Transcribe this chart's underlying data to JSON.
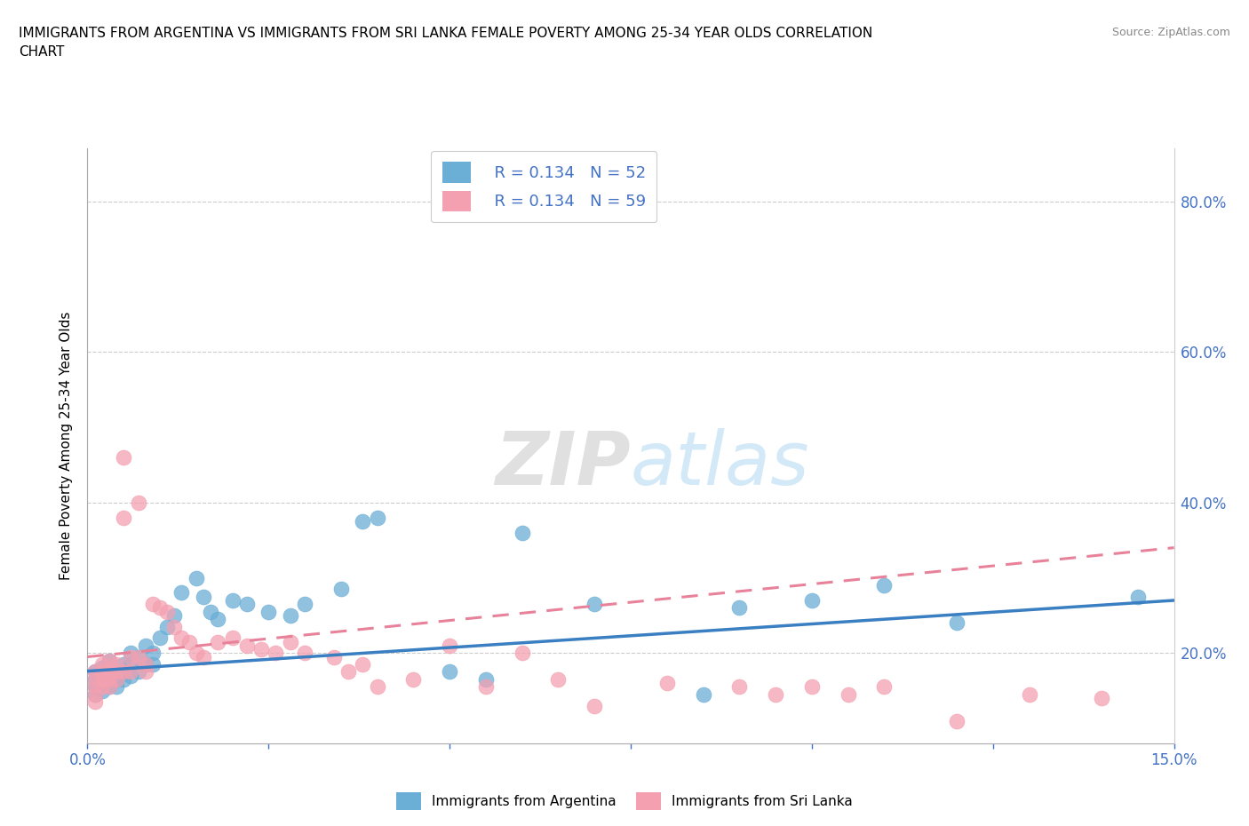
{
  "title_line1": "IMMIGRANTS FROM ARGENTINA VS IMMIGRANTS FROM SRI LANKA FEMALE POVERTY AMONG 25-34 YEAR OLDS CORRELATION",
  "title_line2": "CHART",
  "source": "Source: ZipAtlas.com",
  "ylabel": "Female Poverty Among 25-34 Year Olds",
  "y_ticks": [
    "20.0%",
    "40.0%",
    "60.0%",
    "80.0%"
  ],
  "y_tick_vals": [
    0.2,
    0.4,
    0.6,
    0.8
  ],
  "xmin": 0.0,
  "xmax": 0.15,
  "ymin": 0.08,
  "ymax": 0.87,
  "legend_r_argentina": "R = 0.134",
  "legend_n_argentina": "N = 52",
  "legend_r_srilanka": "R = 0.134",
  "legend_n_srilanka": "N = 59",
  "color_argentina": "#6baed6",
  "color_srilanka": "#f4a0b0",
  "watermark": "ZIPatlas",
  "argentina_x": [
    0.001,
    0.001,
    0.001,
    0.001,
    0.002,
    0.002,
    0.002,
    0.002,
    0.003,
    0.003,
    0.003,
    0.004,
    0.004,
    0.004,
    0.005,
    0.005,
    0.005,
    0.006,
    0.006,
    0.006,
    0.007,
    0.007,
    0.008,
    0.008,
    0.009,
    0.009,
    0.01,
    0.011,
    0.012,
    0.013,
    0.015,
    0.016,
    0.017,
    0.018,
    0.02,
    0.022,
    0.025,
    0.028,
    0.03,
    0.035,
    0.038,
    0.04,
    0.05,
    0.055,
    0.06,
    0.07,
    0.085,
    0.09,
    0.1,
    0.11,
    0.12,
    0.145
  ],
  "argentina_y": [
    0.175,
    0.165,
    0.155,
    0.145,
    0.18,
    0.17,
    0.16,
    0.15,
    0.19,
    0.175,
    0.155,
    0.17,
    0.165,
    0.155,
    0.185,
    0.175,
    0.165,
    0.2,
    0.185,
    0.17,
    0.195,
    0.175,
    0.21,
    0.185,
    0.2,
    0.185,
    0.22,
    0.235,
    0.25,
    0.28,
    0.3,
    0.275,
    0.255,
    0.245,
    0.27,
    0.265,
    0.255,
    0.25,
    0.265,
    0.285,
    0.375,
    0.38,
    0.175,
    0.165,
    0.36,
    0.265,
    0.145,
    0.26,
    0.27,
    0.29,
    0.24,
    0.275
  ],
  "srilanka_x": [
    0.001,
    0.001,
    0.001,
    0.001,
    0.001,
    0.002,
    0.002,
    0.002,
    0.002,
    0.003,
    0.003,
    0.003,
    0.003,
    0.004,
    0.004,
    0.004,
    0.005,
    0.005,
    0.005,
    0.006,
    0.006,
    0.007,
    0.007,
    0.008,
    0.008,
    0.009,
    0.01,
    0.011,
    0.012,
    0.013,
    0.014,
    0.015,
    0.016,
    0.018,
    0.02,
    0.022,
    0.024,
    0.026,
    0.028,
    0.03,
    0.034,
    0.036,
    0.038,
    0.04,
    0.045,
    0.05,
    0.055,
    0.06,
    0.065,
    0.07,
    0.08,
    0.09,
    0.095,
    0.1,
    0.105,
    0.11,
    0.12,
    0.13,
    0.14
  ],
  "srilanka_y": [
    0.175,
    0.165,
    0.155,
    0.145,
    0.135,
    0.185,
    0.175,
    0.165,
    0.155,
    0.19,
    0.175,
    0.165,
    0.155,
    0.185,
    0.175,
    0.165,
    0.46,
    0.38,
    0.175,
    0.195,
    0.175,
    0.4,
    0.195,
    0.185,
    0.175,
    0.265,
    0.26,
    0.255,
    0.235,
    0.22,
    0.215,
    0.2,
    0.195,
    0.215,
    0.22,
    0.21,
    0.205,
    0.2,
    0.215,
    0.2,
    0.195,
    0.175,
    0.185,
    0.155,
    0.165,
    0.21,
    0.155,
    0.2,
    0.165,
    0.13,
    0.16,
    0.155,
    0.145,
    0.155,
    0.145,
    0.155,
    0.11,
    0.145,
    0.14
  ],
  "trendline_arg_x0": 0.0,
  "trendline_arg_y0": 0.176,
  "trendline_arg_x1": 0.15,
  "trendline_arg_y1": 0.27,
  "trendline_sri_x0": 0.0,
  "trendline_sri_y0": 0.195,
  "trendline_sri_x1": 0.15,
  "trendline_sri_y1": 0.34
}
